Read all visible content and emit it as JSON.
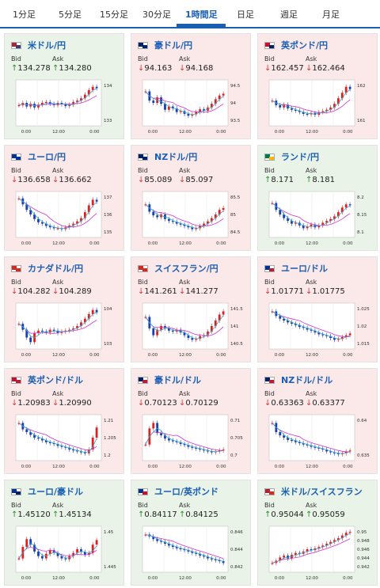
{
  "tabs": [
    {
      "label": "1分足"
    },
    {
      "label": "5分足"
    },
    {
      "label": "15分足"
    },
    {
      "label": "30分足"
    },
    {
      "label": "1時間足",
      "active": true
    },
    {
      "label": "日足"
    },
    {
      "label": "週足"
    },
    {
      "label": "月足"
    }
  ],
  "labels": {
    "bid": "Bid",
    "ask": "Ask"
  },
  "colors": {
    "up_bg": "#e9f3e7",
    "down_bg": "#fbe8e8",
    "up_arrow": "#2e8b2e",
    "down_arrow": "#d43a3a",
    "link": "#1a5fb4",
    "ma": "#cc33cc",
    "ma2": "#33aacc"
  },
  "pairs": [
    {
      "name": "米ドル/円",
      "dir": "up",
      "bid": "134.278",
      "ask": "134.280",
      "flag": [
        "#b22234",
        "#3c3b6e"
      ],
      "chart_data": {
        "type": "candlestick",
        "y_ticks": [
          "134",
          "133"
        ],
        "x_ticks": [
          "0:00",
          "12:00",
          "0:00"
        ],
        "shape": [
          0.45,
          0.5,
          0.42,
          0.48,
          0.4,
          0.46,
          0.5,
          0.52,
          0.48,
          0.45,
          0.5,
          0.47,
          0.43,
          0.46,
          0.52,
          0.55,
          0.6,
          0.68,
          0.78,
          0.85,
          0.82
        ]
      }
    },
    {
      "name": "豪ドル/円",
      "dir": "down",
      "bid": "94.163",
      "ask": "94.168",
      "flag": [
        "#012169",
        "#012169"
      ],
      "chart_data": {
        "type": "candlestick",
        "y_ticks": [
          "94.5",
          "94",
          "93.5"
        ],
        "x_ticks": [
          "0:00",
          "12:00",
          "0:00"
        ],
        "shape": [
          0.75,
          0.55,
          0.5,
          0.62,
          0.48,
          0.35,
          0.42,
          0.38,
          0.3,
          0.32,
          0.26,
          0.22,
          0.25,
          0.3,
          0.36,
          0.33,
          0.4,
          0.48,
          0.58,
          0.66,
          0.7
        ]
      }
    },
    {
      "name": "英ポンド/円",
      "dir": "down",
      "bid": "162.457",
      "ask": "162.464",
      "flag": [
        "#c8102e",
        "#012169"
      ],
      "chart_data": {
        "type": "candlestick",
        "y_ticks": [
          "162",
          "161"
        ],
        "x_ticks": [
          "0:00",
          "12:00",
          "0:00"
        ],
        "shape": [
          0.55,
          0.45,
          0.4,
          0.46,
          0.38,
          0.35,
          0.33,
          0.3,
          0.26,
          0.25,
          0.28,
          0.24,
          0.3,
          0.32,
          0.35,
          0.4,
          0.48,
          0.6,
          0.72,
          0.85,
          0.8
        ]
      }
    },
    {
      "name": "ユーロ/円",
      "dir": "down",
      "bid": "136.658",
      "ask": "136.662",
      "flag": [
        "#003399",
        "#003399"
      ],
      "chart_data": {
        "type": "candlestick",
        "y_ticks": [
          "137",
          "136",
          "135"
        ],
        "x_ticks": [
          "0:00",
          "12:00",
          "0:00"
        ],
        "shape": [
          0.85,
          0.72,
          0.6,
          0.5,
          0.4,
          0.33,
          0.3,
          0.25,
          0.22,
          0.2,
          0.2,
          0.18,
          0.22,
          0.26,
          0.3,
          0.35,
          0.42,
          0.55,
          0.7,
          0.82,
          0.78
        ]
      }
    },
    {
      "name": "NZドル/円",
      "dir": "down",
      "bid": "85.089",
      "ask": "85.097",
      "flag": [
        "#012169",
        "#012169"
      ],
      "chart_data": {
        "type": "candlestick",
        "y_ticks": [
          "85.5",
          "85",
          "84.5"
        ],
        "x_ticks": [
          "0:00",
          "12:00",
          "0:00"
        ],
        "shape": [
          0.72,
          0.56,
          0.48,
          0.44,
          0.5,
          0.4,
          0.36,
          0.34,
          0.3,
          0.28,
          0.25,
          0.22,
          0.18,
          0.2,
          0.25,
          0.3,
          0.35,
          0.42,
          0.5,
          0.6,
          0.64
        ]
      }
    },
    {
      "name": "ランド/円",
      "dir": "up",
      "bid": "8.171",
      "ask": "8.181",
      "flag": [
        "#007a4d",
        "#ffb612"
      ],
      "chart_data": {
        "type": "candlestick",
        "y_ticks": [
          "8.2",
          "8.15",
          "8.1"
        ],
        "x_ticks": [
          "0:00",
          "12:00",
          "0:00"
        ],
        "shape": [
          0.75,
          0.6,
          0.5,
          0.42,
          0.36,
          0.3,
          0.32,
          0.26,
          0.2,
          0.24,
          0.28,
          0.22,
          0.26,
          0.32,
          0.36,
          0.4,
          0.46,
          0.55,
          0.65,
          0.72,
          0.7
        ]
      }
    },
    {
      "name": "カナダドル/円",
      "dir": "down",
      "bid": "104.282",
      "ask": "104.289",
      "flag": [
        "#d52b1e",
        "#d52b1e"
      ],
      "chart_data": {
        "type": "candlestick",
        "y_ticks": [
          "104",
          "103"
        ],
        "x_ticks": [
          "0:00",
          "12:00",
          "0:00"
        ],
        "shape": [
          0.55,
          0.42,
          0.25,
          0.15,
          0.35,
          0.4,
          0.38,
          0.36,
          0.42,
          0.4,
          0.35,
          0.38,
          0.4,
          0.42,
          0.45,
          0.5,
          0.58,
          0.66,
          0.76,
          0.85,
          0.8
        ]
      }
    },
    {
      "name": "スイスフラン/円",
      "dir": "down",
      "bid": "141.261",
      "ask": "141.277",
      "flag": [
        "#d52b1e",
        "#d52b1e"
      ],
      "chart_data": {
        "type": "candlestick",
        "y_ticks": [
          "141.5",
          "141",
          "140.5"
        ],
        "x_ticks": [
          "0:00",
          "12:00",
          "0:00"
        ],
        "shape": [
          0.7,
          0.45,
          0.3,
          0.42,
          0.5,
          0.45,
          0.4,
          0.38,
          0.42,
          0.36,
          0.3,
          0.24,
          0.2,
          0.22,
          0.28,
          0.3,
          0.38,
          0.5,
          0.62,
          0.75,
          0.82
        ]
      }
    },
    {
      "name": "ユーロ/ドル",
      "dir": "down",
      "bid": "1.01771",
      "ask": "1.01775",
      "flag": [
        "#003399",
        "#b22234"
      ],
      "chart_data": {
        "type": "candlestick",
        "y_ticks": [
          "1.025",
          "1.02",
          "1.015"
        ],
        "x_ticks": [
          "0:00",
          "12:00",
          "0:00"
        ],
        "shape": [
          0.82,
          0.72,
          0.66,
          0.62,
          0.58,
          0.55,
          0.52,
          0.48,
          0.46,
          0.42,
          0.4,
          0.36,
          0.32,
          0.3,
          0.28,
          0.24,
          0.2,
          0.22,
          0.26,
          0.3,
          0.34
        ]
      }
    },
    {
      "name": "英ポンド/ドル",
      "dir": "down",
      "bid": "1.20983",
      "ask": "1.20990",
      "flag": [
        "#c8102e",
        "#b22234"
      ],
      "chart_data": {
        "type": "candlestick",
        "y_ticks": [
          "1.21",
          "1.205",
          "1.2"
        ],
        "x_ticks": [
          "0:00",
          "12:00",
          "0:00"
        ],
        "shape": [
          0.82,
          0.68,
          0.62,
          0.56,
          0.5,
          0.48,
          0.44,
          0.4,
          0.38,
          0.36,
          0.32,
          0.3,
          0.28,
          0.24,
          0.22,
          0.2,
          0.18,
          0.16,
          0.24,
          0.5,
          0.72
        ]
      }
    },
    {
      "name": "豪ドル/ドル",
      "dir": "down",
      "bid": "0.70123",
      "ask": "0.70129",
      "flag": [
        "#012169",
        "#b22234"
      ],
      "chart_data": {
        "type": "candlestick",
        "y_ticks": [
          "0.71",
          "0.705",
          "0.7"
        ],
        "x_ticks": [
          "0:00",
          "12:00",
          "0:00"
        ],
        "shape": [
          0.35,
          0.7,
          0.82,
          0.6,
          0.55,
          0.48,
          0.44,
          0.42,
          0.4,
          0.36,
          0.34,
          0.3,
          0.28,
          0.26,
          0.24,
          0.22,
          0.2,
          0.18,
          0.2,
          0.22,
          0.24
        ]
      }
    },
    {
      "name": "NZドル/ドル",
      "dir": "down",
      "bid": "0.63363",
      "ask": "0.63377",
      "flag": [
        "#012169",
        "#b22234"
      ],
      "chart_data": {
        "type": "candlestick",
        "y_ticks": [
          "0.64",
          "0.635"
        ],
        "x_ticks": [
          "0:00",
          "12:00",
          "0:00"
        ],
        "shape": [
          0.82,
          0.62,
          0.55,
          0.5,
          0.45,
          0.44,
          0.4,
          0.38,
          0.35,
          0.33,
          0.3,
          0.28,
          0.26,
          0.24,
          0.2,
          0.18,
          0.16,
          0.14,
          0.16,
          0.2,
          0.22
        ]
      }
    },
    {
      "name": "ユーロ/豪ドル",
      "dir": "up",
      "bid": "1.45120",
      "ask": "1.45134",
      "flag": [
        "#003399",
        "#012169"
      ],
      "chart_data": {
        "type": "candlestick",
        "y_ticks": [
          "1.45",
          "1.445"
        ],
        "x_ticks": [
          "0:00",
          "12:00",
          "0:00"
        ],
        "shape": [
          0.3,
          0.55,
          0.72,
          0.6,
          0.45,
          0.35,
          0.3,
          0.4,
          0.48,
          0.42,
          0.35,
          0.3,
          0.28,
          0.35,
          0.42,
          0.5,
          0.44,
          0.38,
          0.42,
          0.6,
          0.7
        ]
      }
    },
    {
      "name": "ユーロ/英ポンド",
      "dir": "up",
      "bid": "0.84117",
      "ask": "0.84125",
      "flag": [
        "#003399",
        "#c8102e"
      ],
      "chart_data": {
        "type": "candlestick",
        "y_ticks": [
          "0.846",
          "0.844",
          "0.842"
        ],
        "x_ticks": [
          "0:00",
          "12:00",
          "0:00"
        ],
        "shape": [
          0.82,
          0.78,
          0.72,
          0.68,
          0.66,
          0.62,
          0.58,
          0.55,
          0.52,
          0.5,
          0.48,
          0.45,
          0.42,
          0.4,
          0.36,
          0.34,
          0.3,
          0.28,
          0.26,
          0.24,
          0.2
        ]
      }
    },
    {
      "name": "米ドル/スイスフラン",
      "dir": "up",
      "bid": "0.95044",
      "ask": "0.95059",
      "flag": [
        "#b22234",
        "#d52b1e"
      ],
      "chart_data": {
        "type": "candlestick",
        "y_ticks": [
          "0.95",
          "0.948",
          "0.946",
          "0.944",
          "0.942"
        ],
        "x_ticks": [
          "0:00",
          "12:00",
          "0:00"
        ],
        "shape": [
          0.2,
          0.25,
          0.32,
          0.36,
          0.3,
          0.38,
          0.42,
          0.4,
          0.45,
          0.5,
          0.48,
          0.52,
          0.55,
          0.58,
          0.62,
          0.66,
          0.7,
          0.74,
          0.8,
          0.86,
          0.88
        ]
      }
    }
  ]
}
